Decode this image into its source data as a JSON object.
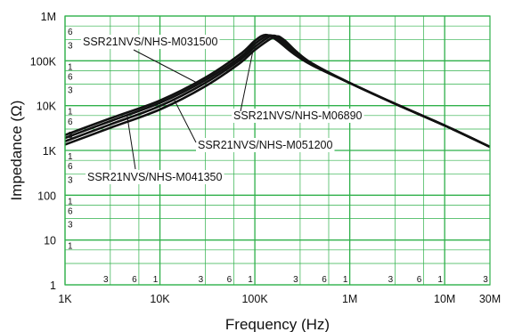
{
  "chart_data": {
    "type": "line",
    "xlabel": "Frequency (Hz)",
    "ylabel": "Impedance (Ω)",
    "x_scale": "log",
    "y_scale": "log",
    "xlim": [
      1000,
      30000000
    ],
    "ylim": [
      1,
      1000000
    ],
    "grid": true,
    "grid_color": "#2fb04a",
    "line_color": "#111111",
    "x_ticks": [
      {
        "value": 1000,
        "label": "1K"
      },
      {
        "value": 10000,
        "label": "10K"
      },
      {
        "value": 100000,
        "label": "100K"
      },
      {
        "value": 1000000,
        "label": "1M"
      },
      {
        "value": 10000000,
        "label": "10M"
      },
      {
        "value": 30000000,
        "label": "30M"
      }
    ],
    "y_ticks": [
      {
        "value": 1,
        "label": "1"
      },
      {
        "value": 10,
        "label": "10"
      },
      {
        "value": 100,
        "label": "100"
      },
      {
        "value": 1000,
        "label": "1K"
      },
      {
        "value": 10000,
        "label": "10K"
      },
      {
        "value": 100000,
        "label": "100K"
      },
      {
        "value": 1000000,
        "label": "1M"
      }
    ],
    "x_minor_labels": [
      {
        "value": 3000,
        "label": "3"
      },
      {
        "value": 6000,
        "label": "6"
      },
      {
        "value": 10000,
        "label": "1"
      },
      {
        "value": 30000,
        "label": "3"
      },
      {
        "value": 60000,
        "label": "6"
      },
      {
        "value": 100000,
        "label": "1"
      },
      {
        "value": 300000,
        "label": "3"
      },
      {
        "value": 600000,
        "label": "6"
      },
      {
        "value": 1000000,
        "label": "1"
      },
      {
        "value": 3000000,
        "label": "3"
      },
      {
        "value": 6000000,
        "label": "6"
      },
      {
        "value": 10000000,
        "label": "1"
      },
      {
        "value": 30000000,
        "label": "3"
      }
    ],
    "y_minor_labels": [
      {
        "value": 10,
        "label": "1"
      },
      {
        "value": 30,
        "label": "3"
      },
      {
        "value": 60,
        "label": "6"
      },
      {
        "value": 100,
        "label": "1"
      },
      {
        "value": 300,
        "label": "3"
      },
      {
        "value": 600,
        "label": "6"
      },
      {
        "value": 1000,
        "label": "1"
      },
      {
        "value": 3000,
        "label": "3"
      },
      {
        "value": 6000,
        "label": "6"
      },
      {
        "value": 10000,
        "label": "1"
      },
      {
        "value": 30000,
        "label": "3"
      },
      {
        "value": 60000,
        "label": "6"
      },
      {
        "value": 100000,
        "label": "1"
      },
      {
        "value": 300000,
        "label": "3"
      },
      {
        "value": 600000,
        "label": "6"
      }
    ],
    "series": [
      {
        "name": "SSR21NVS/NHS-M031500",
        "x": [
          1000,
          3000,
          10000,
          30000,
          70000,
          100000,
          130000,
          170000,
          250000,
          400000,
          1000000,
          3000000,
          10000000,
          30000000
        ],
        "y": [
          2200,
          5200,
          13000,
          42000,
          140000,
          280000,
          380000,
          290000,
          150000,
          80000,
          32000,
          11000,
          3600,
          1200
        ]
      },
      {
        "name": "SSR21NVS/NHS-M041350",
        "x": [
          1000,
          3000,
          10000,
          30000,
          70000,
          100000,
          140000,
          180000,
          250000,
          400000,
          1000000,
          3000000,
          10000000,
          30000000
        ],
        "y": [
          1900,
          4500,
          11500,
          37000,
          120000,
          240000,
          370000,
          290000,
          155000,
          82000,
          32000,
          11000,
          3600,
          1200
        ]
      },
      {
        "name": "SSR21NVS/NHS-M051200",
        "x": [
          1000,
          3000,
          10000,
          30000,
          70000,
          100000,
          150000,
          190000,
          260000,
          400000,
          1000000,
          3000000,
          10000000,
          30000000
        ],
        "y": [
          1600,
          3800,
          9800,
          32000,
          105000,
          205000,
          360000,
          295000,
          160000,
          85000,
          32000,
          11000,
          3600,
          1200
        ]
      },
      {
        "name": "SSR21NVS/NHS-M06890",
        "x": [
          1000,
          3000,
          10000,
          30000,
          70000,
          100000,
          160000,
          200000,
          270000,
          400000,
          1000000,
          3000000,
          10000000,
          30000000
        ],
        "y": [
          1350,
          3200,
          8200,
          27000,
          90000,
          175000,
          340000,
          300000,
          165000,
          88000,
          32000,
          11000,
          3600,
          1200
        ]
      }
    ]
  }
}
